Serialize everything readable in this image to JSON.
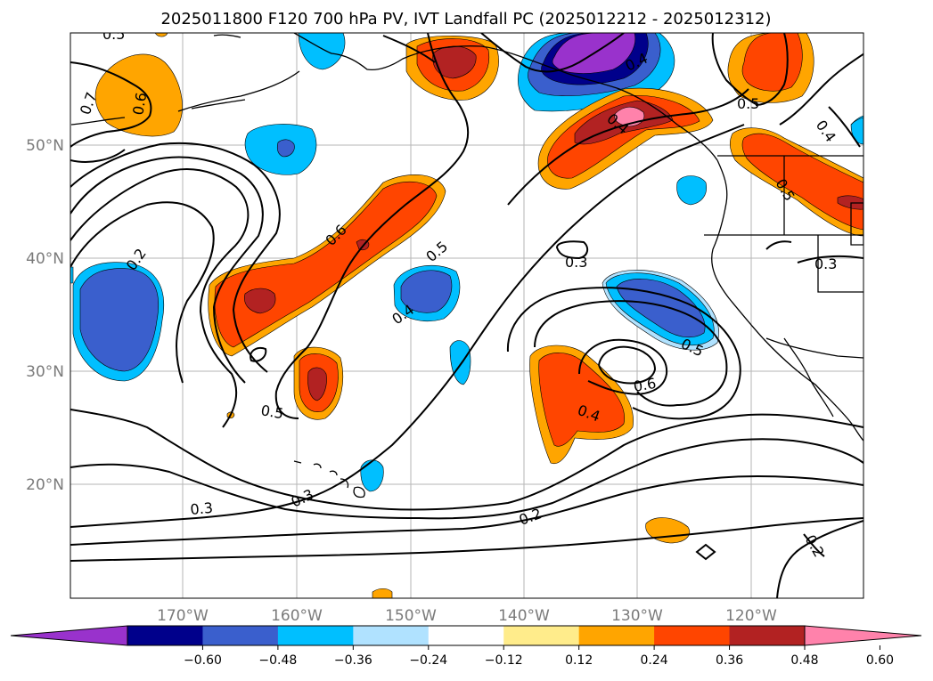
{
  "title": "2025011800 F120 700 hPa PV, IVT Landfall PC (2025012212 - 2025012312)",
  "lat_labels": [
    "50°N",
    "40°N",
    "30°N",
    "20°N"
  ],
  "lon_labels": [
    "170°W",
    "160°W",
    "150°W",
    "140°W",
    "130°W",
    "120°W"
  ],
  "colorbar": {
    "tick_labels": [
      "−0.60",
      "−0.48",
      "−0.36",
      "−0.24",
      "−0.12",
      "0.12",
      "0.24",
      "0.36",
      "0.48",
      "0.60"
    ],
    "colors": [
      "#9932cc",
      "#00008b",
      "#3a5fcd",
      "#00bfff",
      "#b0e2ff",
      "#ffffff",
      "#ffec8b",
      "#ffa500",
      "#ff4500",
      "#b22222",
      "#ff82ab"
    ]
  },
  "contour_labels": [
    "0.7",
    "0.6",
    "0.5",
    "0.2",
    "0.6",
    "0.4",
    "0.5",
    "0.5",
    "0.3",
    "0.5",
    "0.4",
    "0.5",
    "0.6",
    "0.4",
    "0.3",
    "0.3",
    "0.3",
    "0.2",
    "0.2",
    "0.4",
    "0.5",
    "0.4"
  ]
}
